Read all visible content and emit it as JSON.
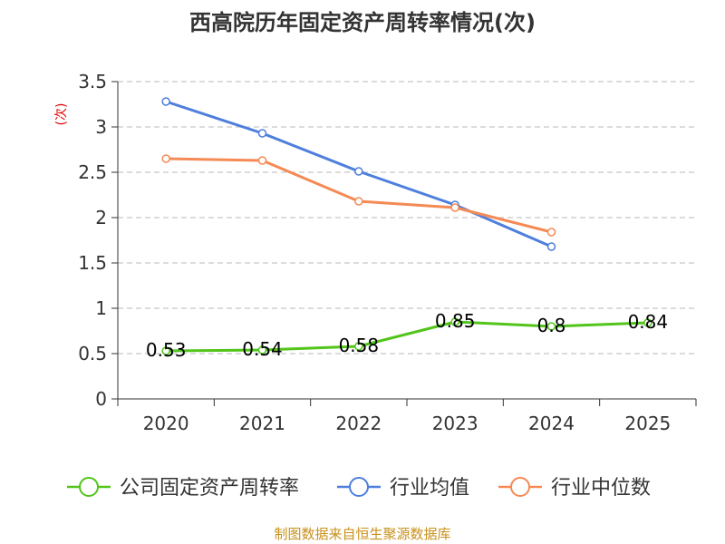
{
  "chart_data": {
    "type": "line",
    "title": "西高院历年固定资产周转率情况(次)",
    "ylabel": "(次)",
    "xlabel": "",
    "ylim": [
      0,
      3.5
    ],
    "yticks": [
      "0",
      "0.5",
      "1",
      "1.5",
      "2",
      "2.5",
      "3",
      "3.5"
    ],
    "categories": [
      "2020",
      "2021",
      "2022",
      "2023",
      "2024",
      "2025"
    ],
    "series": [
      {
        "name": "公司固定资产周转率",
        "color": "#52c41a",
        "values": [
          0.53,
          0.54,
          0.58,
          0.85,
          0.8,
          0.84
        ],
        "labels": [
          "0.53",
          "0.54",
          "0.58",
          "0.85",
          "0.8",
          "0.84"
        ]
      },
      {
        "name": "行业均值",
        "color": "#4e7fdc",
        "values": [
          3.28,
          2.93,
          2.51,
          2.14,
          1.68,
          null
        ]
      },
      {
        "name": "行业中位数",
        "color": "#f58a55",
        "values": [
          2.65,
          2.63,
          2.18,
          2.11,
          1.84,
          null
        ]
      }
    ],
    "legend_position": "bottom",
    "grid": true
  },
  "source_text": "制图数据来自恒生聚源数据库"
}
